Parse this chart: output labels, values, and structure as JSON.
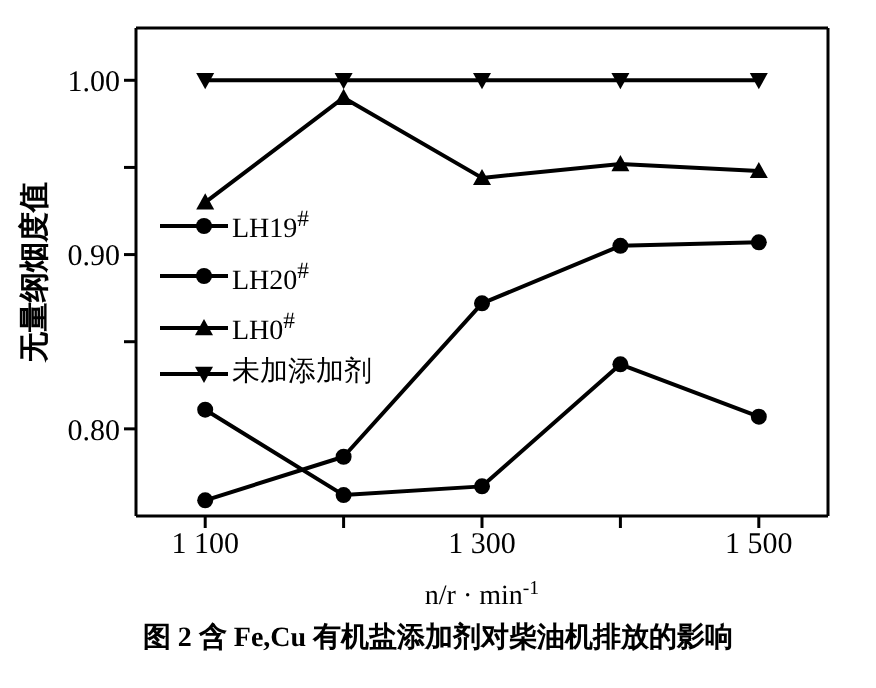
{
  "chart_data": {
    "type": "line",
    "title": "图 2  含 Fe,Cu 有机盐添加剂对柴油机排放的影响",
    "xlabel": "n/r · min$^{-1}$",
    "ylabel": "无量纲烟度值",
    "x": [
      1100,
      1200,
      1300,
      1400,
      1500
    ],
    "series": [
      {
        "name": "LH19$^{#}$",
        "color": "#000000",
        "marker": "circle",
        "values": [
          0.759,
          0.784,
          0.872,
          0.905,
          0.907
        ]
      },
      {
        "name": "LH20$^{#}$",
        "color": "#000000",
        "marker": "circle",
        "values": [
          0.811,
          0.762,
          0.767,
          0.837,
          0.807
        ]
      },
      {
        "name": "LH0$^{#}$",
        "color": "#000000",
        "marker": "triangle",
        "values": [
          0.93,
          0.99,
          0.944,
          0.952,
          0.948
        ]
      },
      {
        "name": "未加添加剂",
        "color": "#000000",
        "marker": "triangle-down",
        "values": [
          1.0,
          1.0,
          1.0,
          1.0,
          1.0
        ]
      }
    ],
    "xlim": [
      1050,
      1550
    ],
    "xticks": [
      {
        "value": 1100,
        "label": "1 100"
      },
      {
        "value": 1200,
        "label": null
      },
      {
        "value": 1300,
        "label": "1 300"
      },
      {
        "value": 1400,
        "label": null
      },
      {
        "value": 1500,
        "label": "1 500"
      }
    ],
    "ylim": [
      0.75,
      1.03
    ],
    "yticks": [
      {
        "value": 0.8,
        "label": "0.80"
      },
      {
        "value": 0.85,
        "label": null
      },
      {
        "value": 0.9,
        "label": "0.90"
      },
      {
        "value": 0.95,
        "label": null
      },
      {
        "value": 1.0,
        "label": "1.00"
      }
    ],
    "grid": false,
    "legend": "left",
    "line_style": "solid"
  }
}
